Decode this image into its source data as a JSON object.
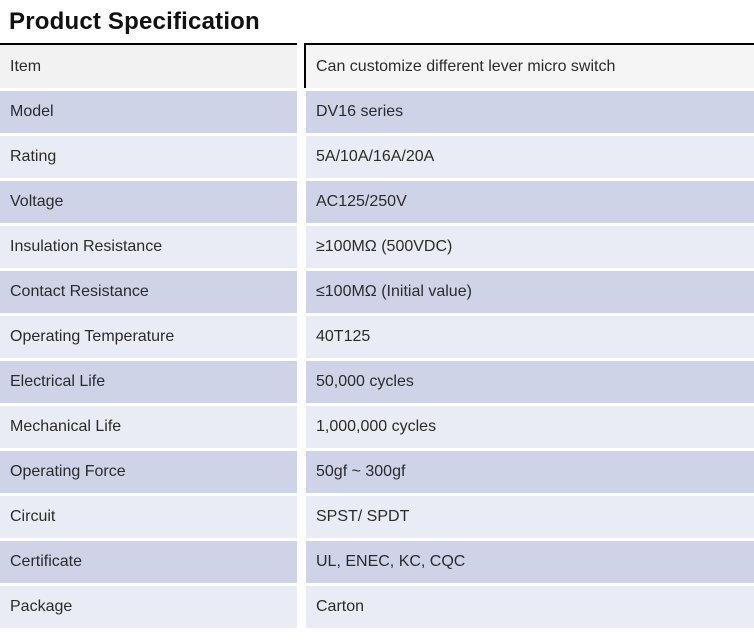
{
  "page": {
    "title": "Product Specification"
  },
  "table": {
    "columns": [
      "label",
      "value"
    ],
    "rows": [
      {
        "label": "Item",
        "value": "Can customize different lever micro switch"
      },
      {
        "label": "Model",
        "value": "DV16 series"
      },
      {
        "label": "Rating",
        "value": "5A/10A/16A/20A"
      },
      {
        "label": "Voltage",
        "value": "AC125/250V"
      },
      {
        "label": "Insulation Resistance",
        "value": "≥100MΩ (500VDC)"
      },
      {
        "label": "Contact Resistance",
        "value": "≤100MΩ (Initial value)"
      },
      {
        "label": "Operating Temperature",
        "value": "40T125"
      },
      {
        "label": "Electrical Life",
        "value": "50,000 cycles"
      },
      {
        "label": "Mechanical Life",
        "value": "1,000,000 cycles"
      },
      {
        "label": "Operating Force",
        "value": "50gf ~ 300gf"
      },
      {
        "label": "Circuit",
        "value": "SPST/ SPDT"
      },
      {
        "label": "Certificate",
        "value": "UL, ENEC, KC, CQC"
      },
      {
        "label": "Package",
        "value": "Carton"
      }
    ],
    "colors": {
      "row_dark": "#cfd3e8",
      "row_light": "#e9ebf5",
      "header_row_left": "#f2f2f2",
      "header_row_right": "#f5f5f5",
      "top_border": "#000000",
      "text": "#2b2b2b"
    }
  }
}
